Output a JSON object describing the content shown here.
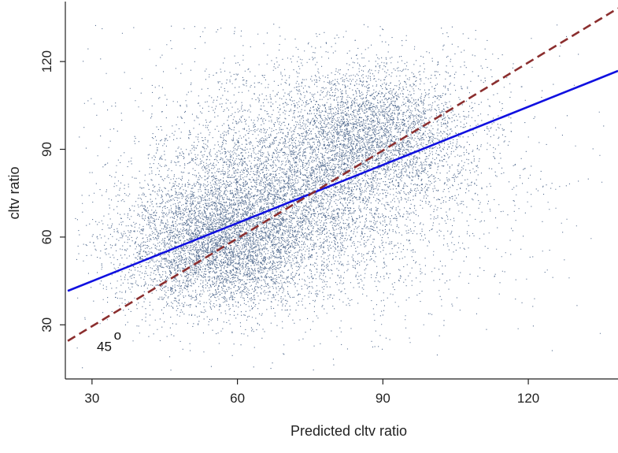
{
  "chart_data": {
    "type": "scatter",
    "xlabel": "Predicted cltv ratio",
    "ylabel": "cltv ratio",
    "xlim": [
      24.5,
      138.5
    ],
    "ylim": [
      11.5,
      140.5
    ],
    "x_ticks": [
      30,
      60,
      90,
      120
    ],
    "y_ticks": [
      30,
      60,
      90,
      120
    ],
    "grid": false,
    "series": [
      {
        "kind": "points",
        "color": "#1f3f6e",
        "clusters": [
          {
            "cx": 55,
            "cy": 57,
            "sx": 10,
            "sy": 11,
            "n": 4200
          },
          {
            "cx": 68,
            "cy": 72,
            "sx": 12,
            "sy": 14,
            "n": 3600
          },
          {
            "cx": 88,
            "cy": 95,
            "sx": 10,
            "sy": 12,
            "n": 3400
          },
          {
            "cx": 75,
            "cy": 80,
            "sx": 22,
            "sy": 25,
            "n": 3300
          }
        ],
        "x_range": [
          26,
          137
        ],
        "y_range": [
          14,
          133
        ]
      },
      {
        "kind": "line",
        "color": "#1010e0",
        "style": "solid",
        "points": [
          [
            25,
            41.6
          ],
          [
            138.5,
            116.8
          ]
        ]
      },
      {
        "kind": "line",
        "color": "#8b2e2e",
        "style": "dashed",
        "points": [
          [
            25,
            24.5
          ],
          [
            138.5,
            138.2
          ]
        ]
      }
    ],
    "annotations": [
      {
        "text": "45",
        "x": 31,
        "y": 21
      },
      {
        "text": "o",
        "x": 34.5,
        "y": 25,
        "superscript": true
      }
    ],
    "tick_labels": {
      "x": [
        "30",
        "60",
        "90",
        "120"
      ],
      "y": [
        "30",
        "60",
        "90",
        "120"
      ]
    }
  }
}
